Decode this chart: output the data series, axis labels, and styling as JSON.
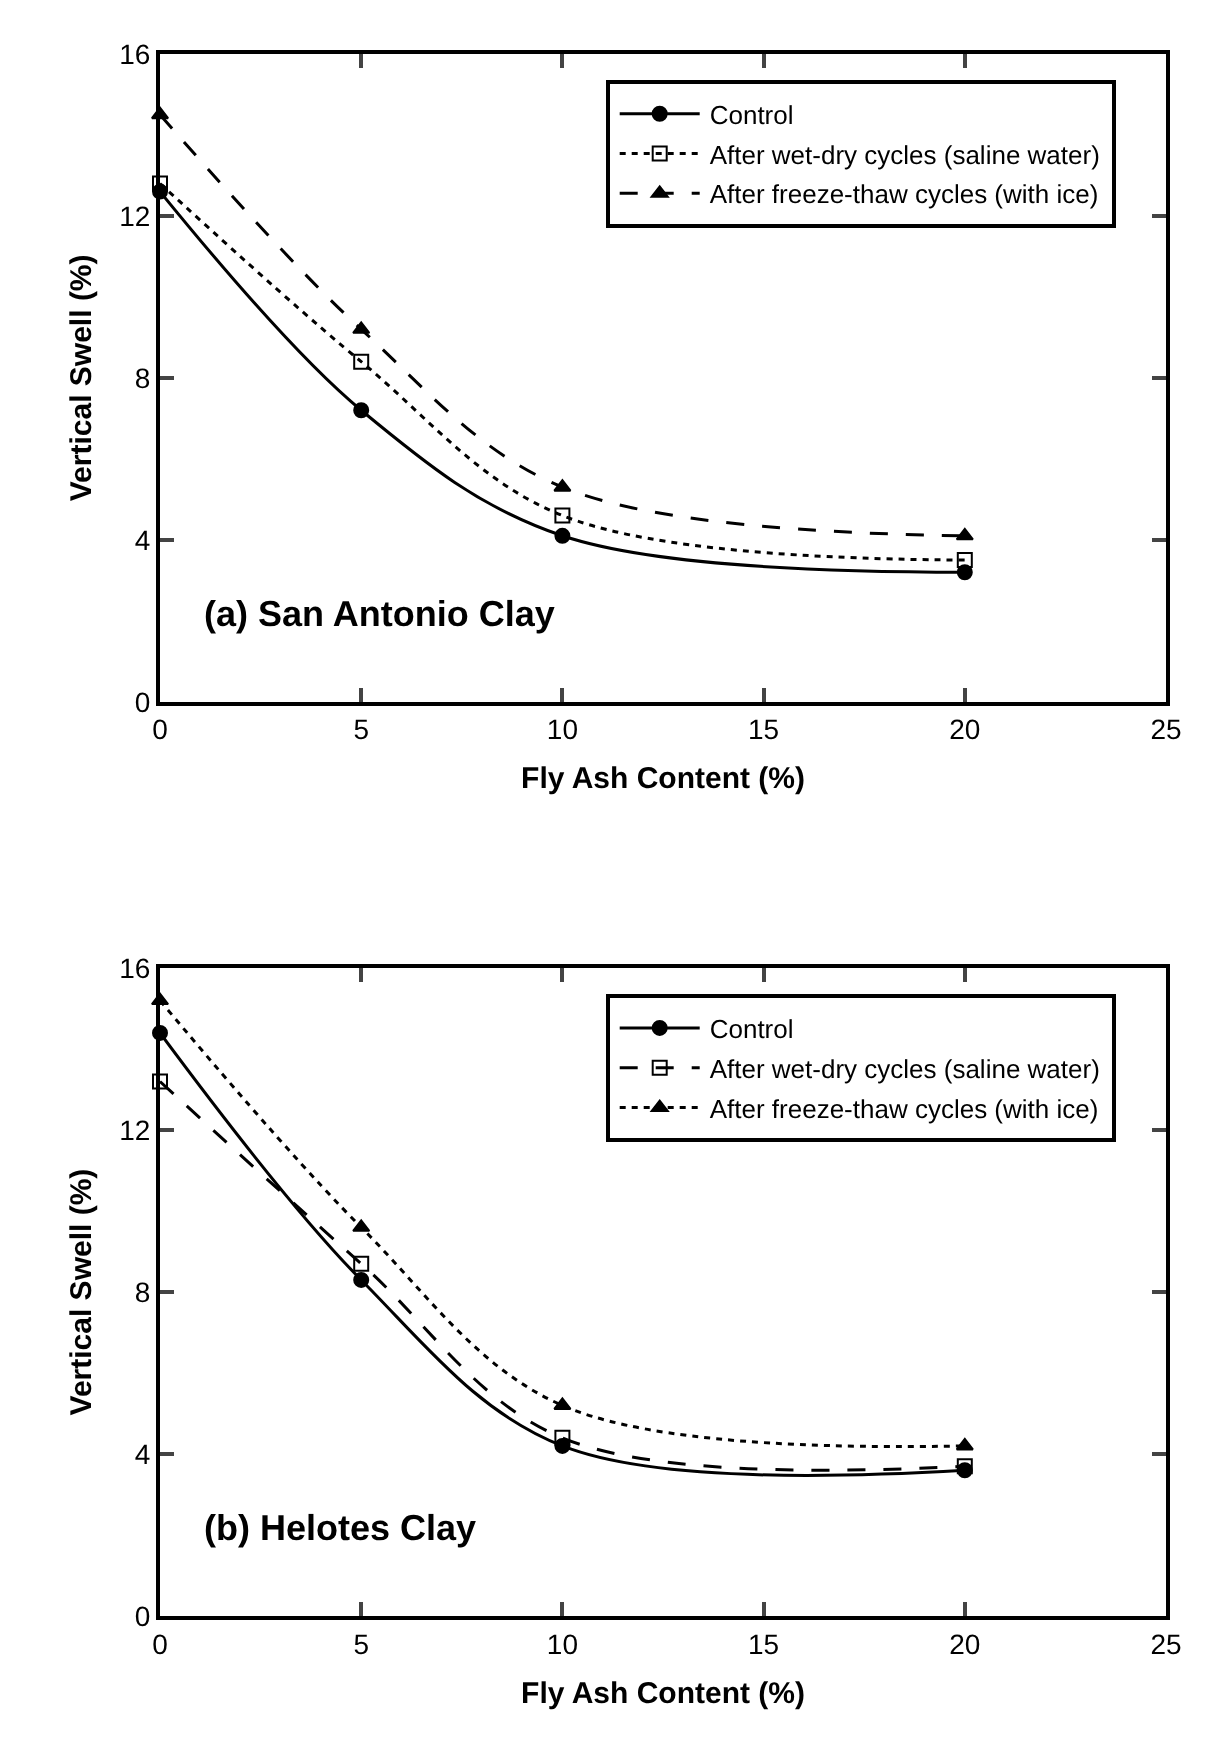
{
  "chart_data": [
    {
      "type": "line",
      "xlabel": "Fly Ash Content (%)",
      "ylabel": "Vertical Swell (%)",
      "annotations": [
        "(a) San Antonio Clay"
      ],
      "x": [
        0,
        5,
        10,
        20
      ],
      "xlim": [
        0,
        25
      ],
      "xticks": [
        0,
        5,
        10,
        15,
        20,
        25
      ],
      "ylim": [
        0,
        16
      ],
      "yticks": [
        0,
        4,
        8,
        12,
        16
      ],
      "legend": "top right",
      "series": [
        {
          "name": "Control",
          "color": "#000000",
          "values": [
            12.6,
            7.2,
            4.1,
            3.2
          ],
          "marker": "circle",
          "line_style": "solid"
        },
        {
          "name": "After wet-dry cycles (saline water)",
          "color": "#000000",
          "values": [
            12.8,
            8.4,
            4.6,
            3.5
          ],
          "marker": "square",
          "line_style": "dotted"
        },
        {
          "name": "After freeze-thaw cycles (with ice)",
          "color": "#000000",
          "values": [
            14.5,
            9.2,
            5.3,
            4.1
          ],
          "marker": "triangle",
          "line_style": "dashed"
        }
      ]
    },
    {
      "type": "line",
      "xlabel": "Fly Ash Content (%)",
      "ylabel": "Vertical Swell (%)",
      "annotations": [
        "(b) Helotes Clay"
      ],
      "x": [
        0,
        5,
        10,
        20
      ],
      "xlim": [
        0,
        25
      ],
      "xticks": [
        0,
        5,
        10,
        15,
        20,
        25
      ],
      "ylim": [
        0,
        16
      ],
      "yticks": [
        0,
        4,
        8,
        12,
        16
      ],
      "legend": "top right",
      "series": [
        {
          "name": "Control",
          "color": "#000000",
          "values": [
            14.4,
            8.3,
            4.2,
            3.6
          ],
          "marker": "circle",
          "line_style": "solid"
        },
        {
          "name": "After wet-dry cycles (saline water)",
          "color": "#000000",
          "values": [
            13.2,
            8.7,
            4.4,
            3.7
          ],
          "marker": "square",
          "line_style": "dashed"
        },
        {
          "name": "After freeze-thaw cycles (with ice)",
          "color": "#000000",
          "values": [
            15.2,
            9.6,
            5.2,
            4.2
          ],
          "marker": "triangle",
          "line_style": "dotted"
        }
      ]
    }
  ]
}
